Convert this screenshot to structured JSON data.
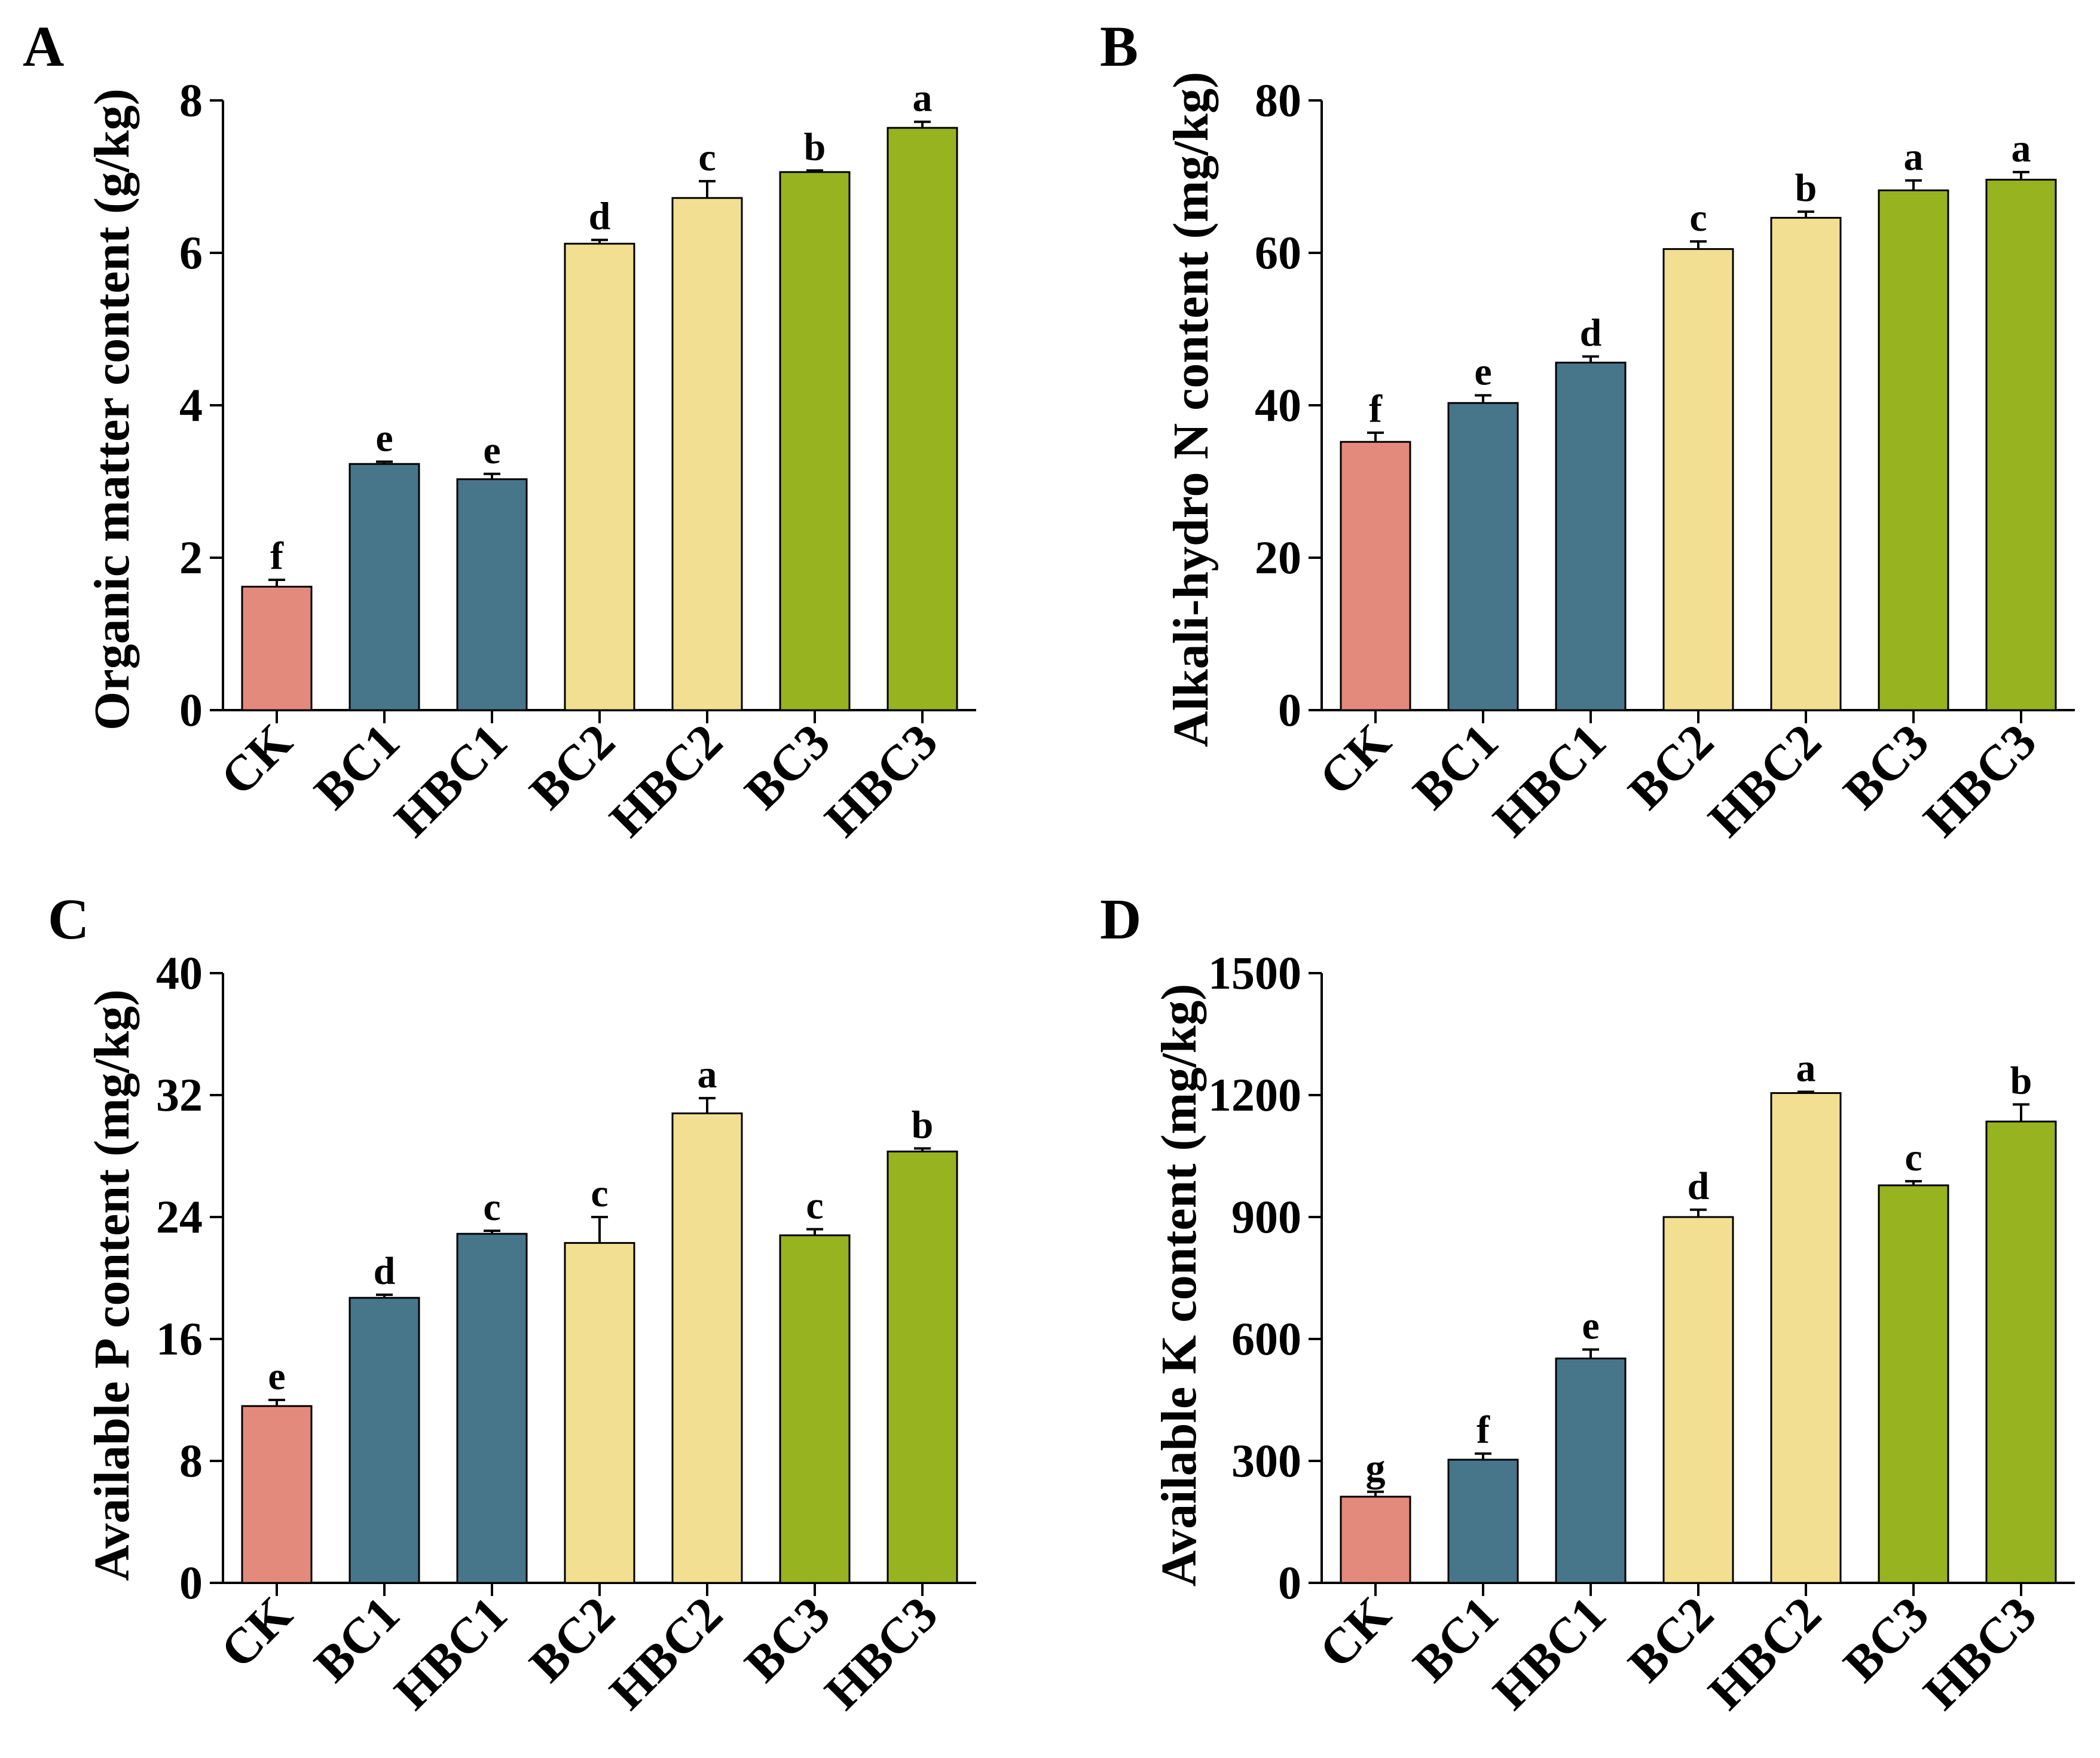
{
  "colors": {
    "CK": "#e48a7c",
    "BC1": "#47768b",
    "HBC1": "#47768b",
    "BC2": "#f3df92",
    "HBC2": "#f3df92",
    "BC3": "#97b31f",
    "HBC3": "#97b31f"
  },
  "chart_data": [
    {
      "type": "bar",
      "panel": "A",
      "ylabel": "Organic matter content (g/kg)",
      "categories": [
        "CK",
        "BC1",
        "HBC1",
        "BC2",
        "HBC2",
        "BC3",
        "HBC3"
      ],
      "values": [
        1.62,
        3.23,
        3.03,
        6.12,
        6.72,
        7.06,
        7.64
      ],
      "errors": [
        0.09,
        0.03,
        0.07,
        0.05,
        0.22,
        0.02,
        0.08
      ],
      "letters": [
        "f",
        "e",
        "e",
        "d",
        "c",
        "b",
        "a"
      ],
      "ylim": [
        0,
        8
      ],
      "ticks": [
        "0",
        "2",
        "4",
        "6",
        "8"
      ]
    },
    {
      "type": "bar",
      "panel": "B",
      "ylabel": "Alkali-hydro N content (mg/kg)",
      "categories": [
        "CK",
        "BC1",
        "HBC1",
        "BC2",
        "HBC2",
        "BC3",
        "HBC3"
      ],
      "values": [
        35.2,
        40.3,
        45.6,
        60.5,
        64.6,
        68.2,
        69.6
      ],
      "errors": [
        1.2,
        1.0,
        0.8,
        1.0,
        0.8,
        1.3,
        1.0
      ],
      "letters": [
        "f",
        "e",
        "d",
        "c",
        "b",
        "a",
        "a"
      ],
      "ylim": [
        0,
        80
      ],
      "ticks": [
        "0",
        "20",
        "40",
        "60",
        "80"
      ]
    },
    {
      "type": "bar",
      "panel": "C",
      "ylabel": "Available P content (mg/kg)",
      "categories": [
        "CK",
        "BC1",
        "HBC1",
        "BC2",
        "HBC2",
        "BC3",
        "HBC3"
      ],
      "values": [
        11.6,
        18.7,
        22.9,
        22.3,
        30.8,
        22.8,
        28.3
      ],
      "errors": [
        0.4,
        0.2,
        0.2,
        1.7,
        1.0,
        0.4,
        0.2
      ],
      "letters": [
        "e",
        "d",
        "c",
        "c",
        "a",
        "c",
        "b"
      ],
      "ylim": [
        0,
        40
      ],
      "ticks": [
        "0",
        "8",
        "16",
        "24",
        "32",
        "40"
      ]
    },
    {
      "type": "bar",
      "panel": "D",
      "ylabel": "Available K content (mg/kg)",
      "categories": [
        "CK",
        "BC1",
        "HBC1",
        "BC2",
        "HBC2",
        "BC3",
        "HBC3"
      ],
      "values": [
        212,
        303,
        552,
        900,
        1205,
        978,
        1135
      ],
      "errors": [
        12,
        15,
        22,
        18,
        3,
        10,
        42
      ],
      "letters": [
        "g",
        "f",
        "e",
        "d",
        "a",
        "c",
        "b"
      ],
      "ylim": [
        0,
        1500
      ],
      "ticks": [
        "0",
        "300",
        "600",
        "900",
        "1200",
        "1500"
      ]
    }
  ]
}
